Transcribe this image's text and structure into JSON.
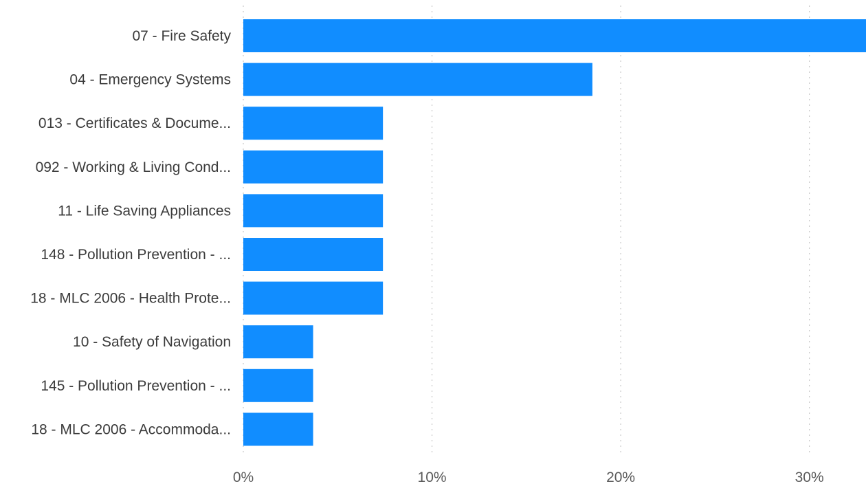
{
  "chart_data": {
    "type": "bar",
    "orientation": "horizontal",
    "categories": [
      "07 - Fire Safety",
      "04 - Emergency Systems",
      "013 - Certificates & Docume...",
      "092 - Working & Living Cond...",
      "11 - Life Saving Appliances",
      "148 - Pollution Prevention - ...",
      "18 - MLC 2006 - Health Prote...",
      "10 - Safety of Navigation",
      "145 - Pollution Prevention - ...",
      "18 - MLC 2006 - Accommoda..."
    ],
    "values": [
      33.3,
      18.5,
      7.4,
      7.4,
      7.4,
      7.4,
      7.4,
      3.7,
      3.7,
      3.7
    ],
    "xlim": [
      0,
      33.0
    ],
    "x_ticks": [
      0,
      10,
      20,
      30
    ],
    "x_tick_labels": [
      "0%",
      "10%",
      "20%",
      "30%"
    ],
    "title": "",
    "xlabel": "",
    "ylabel": "",
    "grid": true,
    "bar_color": "#118DFF"
  }
}
